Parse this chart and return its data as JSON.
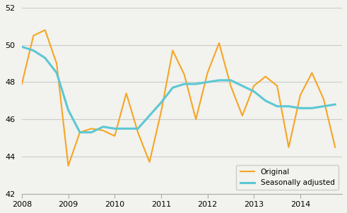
{
  "title": "",
  "xlabel": "",
  "ylabel": "",
  "ylim": [
    42,
    52
  ],
  "yticks": [
    42,
    44,
    46,
    48,
    50,
    52
  ],
  "original_color": "#F5A623",
  "adjusted_color": "#5BC8D4",
  "original_label": "Original",
  "adjusted_label": "Seasonally adjusted",
  "x_values": [
    2008.0,
    2008.25,
    2008.5,
    2008.75,
    2009.0,
    2009.25,
    2009.5,
    2009.75,
    2010.0,
    2010.25,
    2010.5,
    2010.75,
    2011.0,
    2011.25,
    2011.5,
    2011.75,
    2012.0,
    2012.25,
    2012.5,
    2012.75,
    2013.0,
    2013.25,
    2013.5,
    2013.75,
    2014.0,
    2014.25,
    2014.5,
    2014.75
  ],
  "original": [
    47.9,
    50.5,
    50.8,
    49.0,
    43.5,
    45.3,
    45.5,
    45.4,
    45.1,
    47.4,
    45.3,
    43.7,
    46.4,
    49.7,
    48.4,
    46.0,
    48.5,
    50.1,
    47.8,
    46.2,
    47.8,
    48.3,
    47.8,
    44.5,
    47.3,
    48.5,
    47.1,
    44.5
  ],
  "adjusted": [
    49.9,
    49.7,
    49.3,
    48.5,
    46.5,
    45.3,
    45.3,
    45.6,
    45.5,
    45.5,
    45.5,
    46.2,
    46.9,
    47.7,
    47.9,
    47.9,
    48.0,
    48.1,
    48.1,
    47.8,
    47.5,
    47.0,
    46.7,
    46.7,
    46.6,
    46.6,
    46.7,
    46.8
  ],
  "xtick_positions": [
    2008,
    2009,
    2010,
    2011,
    2012,
    2013,
    2014
  ],
  "xtick_labels": [
    "2008",
    "2009",
    "2010",
    "2011",
    "2012",
    "2013",
    "2014"
  ],
  "grid_color": "#cccccc",
  "background_color": "#f2f2ee",
  "legend_loc": "lower right",
  "adjusted_linewidth": 2.2,
  "original_linewidth": 1.5
}
